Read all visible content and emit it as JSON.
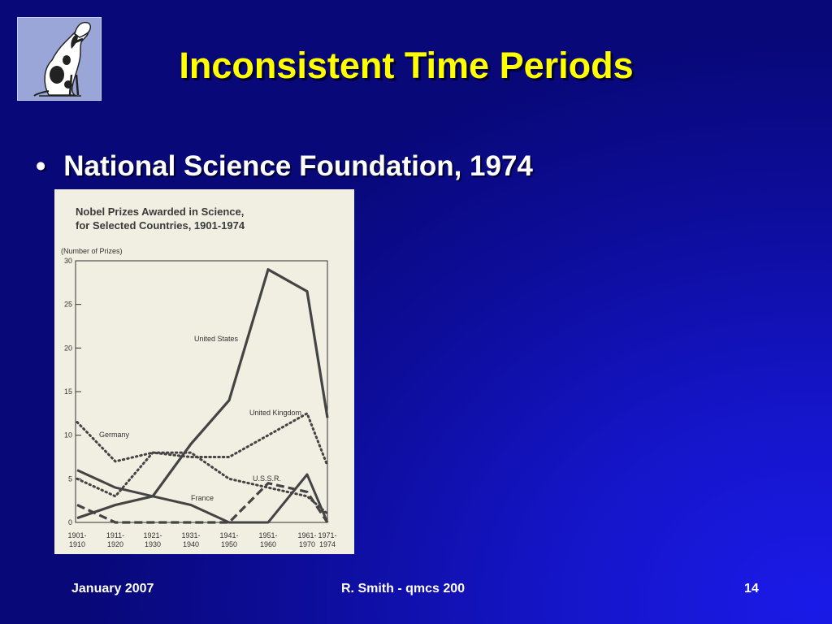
{
  "slide": {
    "title": "Inconsistent Time Periods",
    "bullet": "National Science Foundation, 1974",
    "footer": {
      "date": "January 2007",
      "author": "R. Smith - qmcs 200",
      "page": "14"
    },
    "colors": {
      "title": "#ffff00",
      "text": "#ffffff",
      "background": "#0d0d9a"
    }
  },
  "logo": {
    "icon": "howling-dog-icon"
  },
  "chart_data": {
    "type": "line",
    "title_lines": [
      "Nobel Prizes Awarded in Science,",
      "for Selected Countries, 1901-1974"
    ],
    "ylabel": "(Number of Prizes)",
    "ylim": [
      0,
      30
    ],
    "yticks": [
      "0",
      "5",
      "10",
      "15",
      "20",
      "25",
      "30"
    ],
    "xtick_labels": [
      [
        "1901-",
        "1910"
      ],
      [
        "1911-",
        "1920"
      ],
      [
        "1921-",
        "1930"
      ],
      [
        "1931-",
        "1940"
      ],
      [
        "1941-",
        "1950"
      ],
      [
        "1951-",
        "1960"
      ],
      [
        "1961-",
        "1970"
      ],
      [
        "1971-",
        "1974"
      ]
    ],
    "categories": [
      "1901-1910",
      "1911-1920",
      "1921-1930",
      "1931-1940",
      "1941-1950",
      "1951-1960",
      "1961-1970",
      "1971-1974"
    ],
    "series": [
      {
        "name": "United States",
        "style": "solid",
        "values": [
          0.5,
          2,
          3,
          9,
          14,
          29,
          26.5,
          12
        ]
      },
      {
        "name": "United Kingdom",
        "style": "dotted",
        "values": [
          5,
          3,
          8,
          7.5,
          7.5,
          10,
          12.5,
          6.5
        ]
      },
      {
        "name": "Germany",
        "style": "dotted",
        "values": [
          11.5,
          7,
          8,
          8,
          5,
          4,
          3,
          1
        ]
      },
      {
        "name": "France",
        "style": "solid",
        "values": [
          6,
          4,
          3,
          2,
          0,
          0,
          5.5,
          0
        ]
      },
      {
        "name": "U.S.S.R.",
        "style": "dashed",
        "values": [
          2,
          0,
          0,
          0,
          0,
          4.5,
          3.5,
          0
        ]
      }
    ],
    "series_labels": [
      "United States",
      "United Kingdom",
      "Germany",
      "France",
      "U.S.S.R."
    ],
    "grid": false
  }
}
